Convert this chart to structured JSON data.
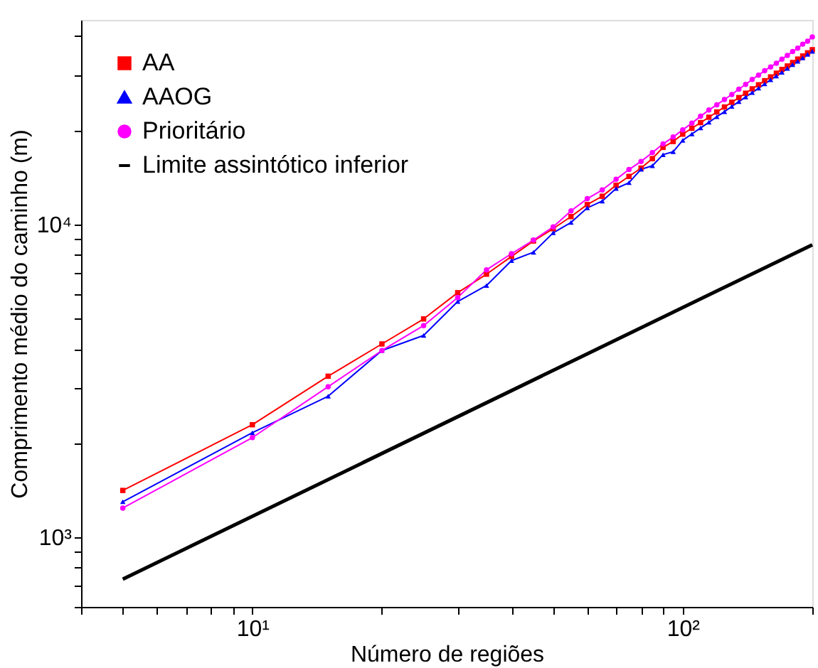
{
  "chart_data": {
    "type": "line",
    "xlabel": "Número de regiões",
    "ylabel": "Comprimento médio do caminho (m)",
    "log": "xy",
    "grid": false,
    "legend": "top left",
    "xlim": [
      4,
      200
    ],
    "ylim": [
      600,
      45000
    ],
    "xticks": [
      {
        "value": 4,
        "label": null
      },
      {
        "value": 5,
        "label": null
      },
      {
        "value": 6,
        "label": null
      },
      {
        "value": 7,
        "label": null
      },
      {
        "value": 8,
        "label": null
      },
      {
        "value": 9,
        "label": null
      },
      {
        "value": 10,
        "label": "10¹"
      },
      {
        "value": 20,
        "label": null
      },
      {
        "value": 30,
        "label": null
      },
      {
        "value": 40,
        "label": null
      },
      {
        "value": 50,
        "label": null
      },
      {
        "value": 60,
        "label": null
      },
      {
        "value": 70,
        "label": null
      },
      {
        "value": 80,
        "label": null
      },
      {
        "value": 90,
        "label": null
      },
      {
        "value": 100,
        "label": "10²"
      },
      {
        "value": 200,
        "label": null
      }
    ],
    "yticks": [
      {
        "value": 600,
        "label": null
      },
      {
        "value": 700,
        "label": null
      },
      {
        "value": 800,
        "label": null
      },
      {
        "value": 900,
        "label": null
      },
      {
        "value": 1000,
        "label": "10³"
      },
      {
        "value": 2000,
        "label": null
      },
      {
        "value": 3000,
        "label": null
      },
      {
        "value": 4000,
        "label": null
      },
      {
        "value": 5000,
        "label": null
      },
      {
        "value": 6000,
        "label": null
      },
      {
        "value": 7000,
        "label": null
      },
      {
        "value": 8000,
        "label": null
      },
      {
        "value": 9000,
        "label": null
      },
      {
        "value": 10000,
        "label": "10⁴"
      },
      {
        "value": 20000,
        "label": null
      },
      {
        "value": 30000,
        "label": null
      },
      {
        "value": 40000,
        "label": null
      }
    ],
    "x": [
      5,
      10,
      15,
      20,
      25,
      30,
      35,
      40,
      45,
      50,
      55,
      60,
      65,
      70,
      75,
      80,
      85,
      90,
      95,
      100,
      105,
      110,
      115,
      120,
      125,
      130,
      135,
      140,
      145,
      150,
      155,
      160,
      165,
      170,
      175,
      180,
      185,
      190,
      195,
      200
    ],
    "series": [
      {
        "name": "AA",
        "color": "#ff0000",
        "marker": "square",
        "values": [
          1413,
          2291,
          3273,
          4150,
          4989,
          6050,
          6934,
          7900,
          8850,
          9690,
          10590,
          11570,
          12300,
          13340,
          14230,
          15130,
          16220,
          17620,
          18400,
          19420,
          20280,
          21140,
          21990,
          22860,
          23710,
          24550,
          25410,
          26240,
          27100,
          27920,
          28770,
          29580,
          30410,
          31260,
          32060,
          32890,
          33730,
          34510,
          35320,
          36140
        ]
      },
      {
        "name": "AAOG",
        "color": "#0000ff",
        "marker": "triangle",
        "values": [
          1300,
          2160,
          2825,
          3955,
          4420,
          5670,
          6380,
          7660,
          8150,
          9400,
          10140,
          11290,
          11870,
          13020,
          13590,
          15000,
          15390,
          16700,
          17060,
          18560,
          19450,
          20320,
          21190,
          22080,
          22910,
          23820,
          24660,
          25530,
          26360,
          27230,
          28100,
          28970,
          29790,
          30620,
          31480,
          32360,
          33190,
          34040,
          34910,
          35700
        ]
      },
      {
        "name": "Prioritário",
        "color": "#ff00ff",
        "marker": "circle",
        "values": [
          1241,
          2084,
          3030,
          3955,
          4750,
          5840,
          7160,
          8060,
          8910,
          9820,
          11040,
          12080,
          12880,
          13930,
          14970,
          15890,
          16950,
          18070,
          19010,
          20050,
          21050,
          22150,
          23190,
          24110,
          25060,
          25990,
          27040,
          28010,
          29040,
          29980,
          30970,
          31840,
          32730,
          33700,
          34670,
          35650,
          36550,
          37650,
          38460,
          39720
        ]
      },
      {
        "name": "Limite assintótico inferior",
        "color": "#000000",
        "marker": "none",
        "x": [
          5,
          200
        ],
        "values": [
          736,
          8610
        ]
      }
    ]
  }
}
